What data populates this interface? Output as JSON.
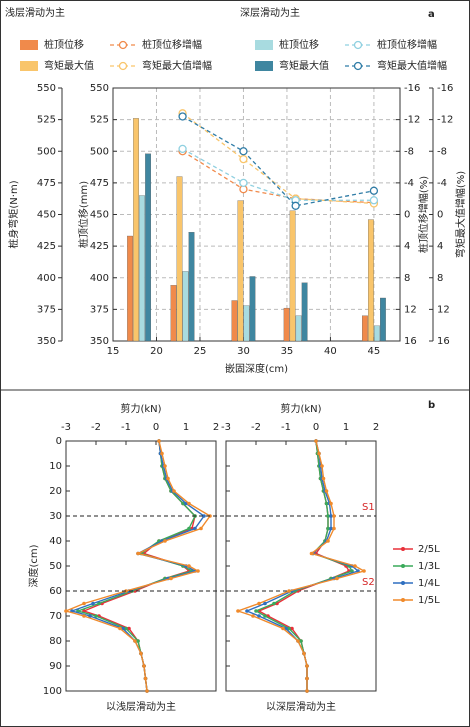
{
  "chart_data": [
    {
      "type": "combo",
      "panel_label": "a",
      "x_label": "嵌固深度(cm)",
      "x": [
        18,
        23,
        30,
        36,
        45
      ],
      "xlim": [
        15,
        48
      ],
      "xticks": [
        15,
        20,
        25,
        30,
        35,
        40,
        45
      ],
      "y_label": "桩顶位移(mm)",
      "ylim": [
        350,
        550
      ],
      "yticks": [
        350,
        375,
        400,
        425,
        450,
        475,
        500,
        525,
        550
      ],
      "y3_label": "桩身弯矩(N·m)",
      "y3lim": [
        350,
        550
      ],
      "y3ticks": [
        350,
        375,
        400,
        425,
        450,
        475,
        500,
        525,
        550
      ],
      "y2_label": "桩顶位移增幅(%)",
      "y2lim": [
        16,
        -16
      ],
      "y2ticks": [
        16,
        12,
        8,
        4,
        0,
        -4,
        -8,
        -12,
        -16
      ],
      "y4_label": "弯矩最大值增幅(%)",
      "y4lim": [
        16,
        -16
      ],
      "y4ticks": [
        16,
        12,
        8,
        4,
        0,
        -4,
        -8,
        -12,
        -16
      ],
      "grid": true,
      "groups": [
        {
          "name": "浅层滑动为主",
          "series": [
            {
              "name": "桩顶位移",
              "type": "bar",
              "axis": "y",
              "color": "#f08a4b",
              "values": [
                433,
                394,
                382,
                376,
                370
              ]
            },
            {
              "name": "桩顶位移增幅",
              "type": "line",
              "axis": "y2",
              "color": "#f08a4b",
              "values": [
                null,
                -8,
                -3.2,
                -2,
                -1.5
              ]
            },
            {
              "name": "弯矩最大值",
              "type": "bar",
              "axis": "y3",
              "color": "#f9c56b",
              "values": [
                526,
                480,
                461,
                453,
                446
              ]
            },
            {
              "name": "弯矩最大值增幅",
              "type": "line",
              "axis": "y4",
              "color": "#f9c56b",
              "values": [
                null,
                -12.8,
                -7,
                -2,
                -1.4
              ]
            }
          ]
        },
        {
          "name": "深层滑动为主",
          "series": [
            {
              "name": "桩顶位移",
              "type": "bar",
              "axis": "y",
              "color": "#a8dbe0",
              "values": [
                465,
                405,
                378,
                370,
                362
              ]
            },
            {
              "name": "桩顶位移增幅",
              "type": "line",
              "axis": "y2",
              "color": "#8fd0e0",
              "values": [
                null,
                -8.3,
                -4,
                -1.8,
                -1.8
              ]
            },
            {
              "name": "弯矩最大值",
              "type": "bar",
              "axis": "y3",
              "color": "#3f86a0",
              "values": [
                498,
                436,
                401,
                396,
                384
              ]
            },
            {
              "name": "弯矩最大值增幅",
              "type": "line",
              "axis": "y4",
              "color": "#2f7ca6",
              "values": [
                null,
                -12.4,
                -8,
                -1.1,
                -3
              ]
            }
          ]
        }
      ]
    },
    {
      "type": "profile",
      "x_label": "剪力(kN)",
      "xlim": [
        -3,
        2
      ],
      "xticks": [
        -3,
        -2,
        -1,
        0,
        1,
        2
      ],
      "y_label": "深度(cm)",
      "ylim": [
        100,
        0
      ],
      "yticks": [
        0,
        10,
        20,
        30,
        40,
        50,
        60,
        70,
        80,
        90,
        100
      ],
      "ytick_labels": true,
      "caption": "以浅层滑动为主",
      "y": [
        0,
        5,
        10,
        15,
        20,
        25,
        30,
        35,
        40,
        45,
        50,
        52,
        55,
        60,
        65,
        68,
        70,
        75,
        80,
        85,
        90,
        95,
        100
      ],
      "series": [
        {
          "color": "#e8303a",
          "values": [
            0.1,
            0.15,
            0.2,
            0.3,
            0.5,
            0.9,
            1.3,
            1.2,
            0.1,
            -0.4,
            0.9,
            1.1,
            0.3,
            -0.7,
            -1.8,
            -2.4,
            -1.9,
            -0.9,
            -0.6,
            -0.5,
            -0.4,
            -0.35,
            -0.3
          ]
        },
        {
          "color": "#3aaa5a",
          "values": [
            0.1,
            0.15,
            0.2,
            0.3,
            0.5,
            0.9,
            1.3,
            1.1,
            0.1,
            -0.5,
            0.9,
            1.2,
            0.3,
            -0.8,
            -1.9,
            -2.6,
            -2.0,
            -1.0,
            -0.6,
            -0.5,
            -0.4,
            -0.35,
            -0.3
          ]
        },
        {
          "color": "#2e6fc0",
          "values": [
            0.1,
            0.15,
            0.25,
            0.35,
            0.55,
            1.0,
            1.6,
            1.3,
            0.2,
            -0.6,
            1.0,
            1.3,
            0.4,
            -0.9,
            -2.1,
            -2.8,
            -2.2,
            -1.1,
            -0.7,
            -0.5,
            -0.4,
            -0.35,
            -0.3
          ]
        },
        {
          "color": "#f08a2b",
          "values": [
            0.1,
            0.2,
            0.3,
            0.4,
            0.6,
            1.1,
            1.8,
            1.5,
            0.3,
            -0.6,
            1.1,
            1.4,
            0.5,
            -1.0,
            -2.4,
            -3.0,
            -2.4,
            -1.2,
            -0.7,
            -0.5,
            -0.4,
            -0.35,
            -0.3
          ]
        }
      ]
    },
    {
      "type": "profile",
      "panel_label": "b",
      "x_label": "剪力(kN)",
      "xlim": [
        -3,
        2
      ],
      "xticks": [
        -3,
        -2,
        -1,
        0,
        1,
        2
      ],
      "ylim": [
        100,
        0
      ],
      "yticks": [
        0,
        10,
        20,
        30,
        40,
        50,
        60,
        70,
        80,
        90,
        100
      ],
      "ytick_labels": false,
      "caption": "以深层滑动为主",
      "legend": "right",
      "annotations": [
        {
          "text": "S1",
          "y": 30
        },
        {
          "text": "S2",
          "y": 60
        }
      ],
      "y": [
        0,
        5,
        10,
        15,
        20,
        25,
        30,
        35,
        40,
        45,
        50,
        52,
        55,
        60,
        65,
        68,
        70,
        75,
        80,
        85,
        90,
        95,
        100
      ],
      "series": [
        {
          "name": "2/5L",
          "color": "#e8303a",
          "values": [
            0,
            0.05,
            0.1,
            0.15,
            0.25,
            0.35,
            0.4,
            0.4,
            0.3,
            0,
            1.0,
            1.1,
            0.5,
            -0.6,
            -1.3,
            -1.9,
            -1.6,
            -0.8,
            -0.5,
            -0.4,
            -0.3,
            -0.3,
            -0.3
          ]
        },
        {
          "name": "1/3L",
          "color": "#3aaa5a",
          "values": [
            0,
            0.05,
            0.1,
            0.15,
            0.25,
            0.35,
            0.4,
            0.4,
            0.3,
            -0.1,
            1.1,
            1.2,
            0.5,
            -0.7,
            -1.4,
            -2.0,
            -1.7,
            -0.9,
            -0.5,
            -0.4,
            -0.3,
            -0.3,
            -0.3
          ]
        },
        {
          "name": "1/4L",
          "color": "#2e6fc0",
          "values": [
            0,
            0.1,
            0.15,
            0.2,
            0.3,
            0.45,
            0.5,
            0.5,
            0.35,
            -0.1,
            1.2,
            1.4,
            0.6,
            -0.8,
            -1.7,
            -2.3,
            -1.9,
            -1.0,
            -0.6,
            -0.4,
            -0.3,
            -0.3,
            -0.3
          ]
        },
        {
          "name": "1/5L",
          "color": "#f08a2b",
          "values": [
            0,
            0.1,
            0.2,
            0.25,
            0.35,
            0.5,
            0.6,
            0.6,
            0.4,
            -0.15,
            1.3,
            1.6,
            0.7,
            -0.9,
            -1.9,
            -2.6,
            -2.1,
            -1.1,
            -0.6,
            -0.4,
            -0.3,
            -0.3,
            -0.3
          ]
        }
      ]
    }
  ]
}
